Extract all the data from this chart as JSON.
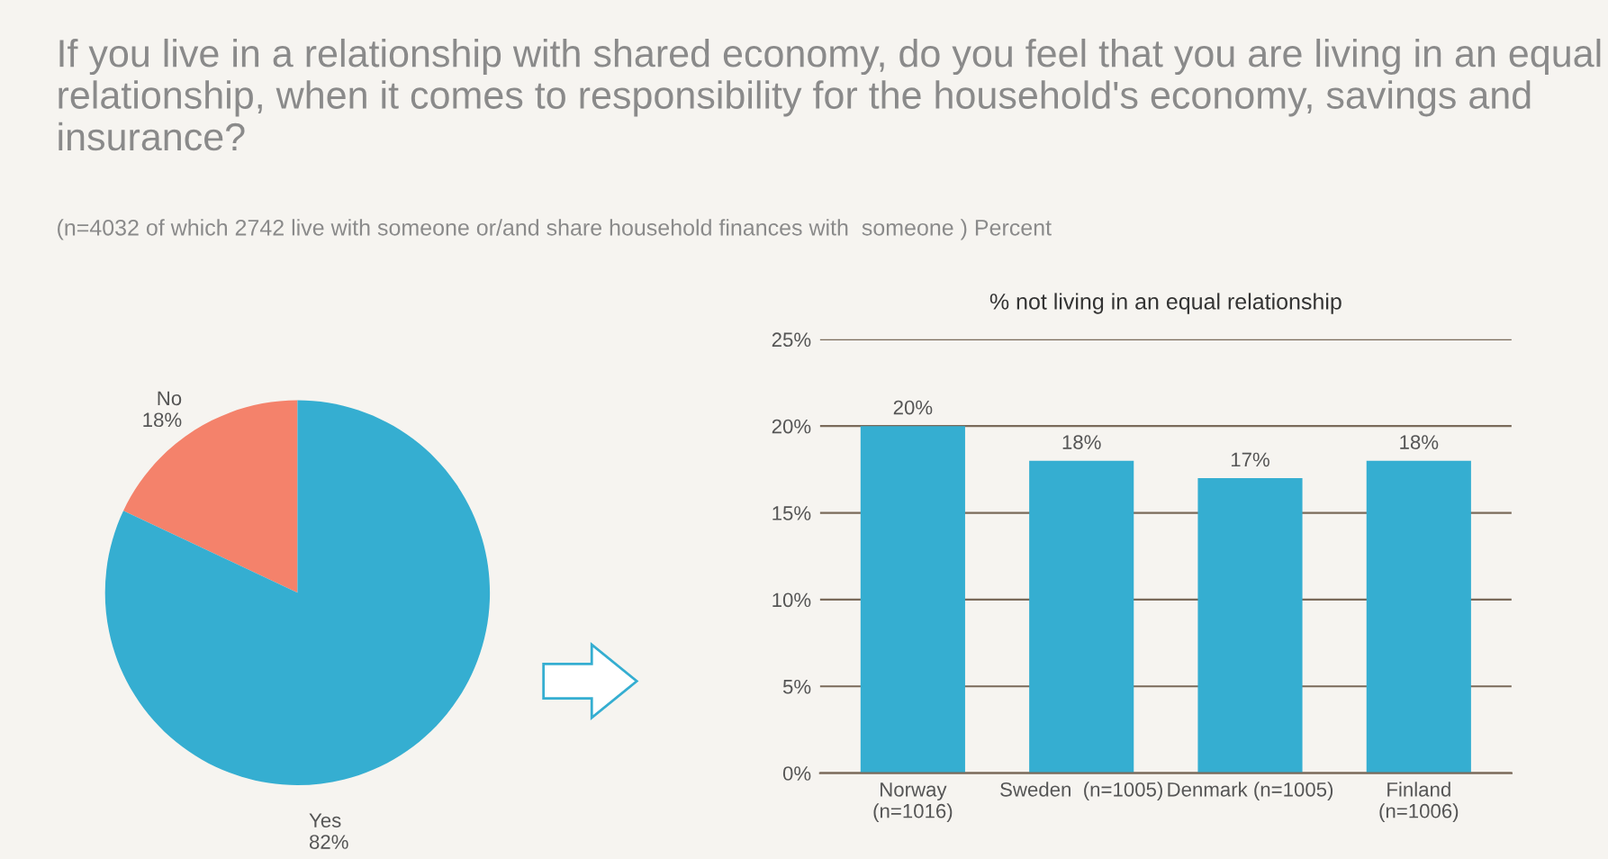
{
  "chart_data": [
    {
      "type": "pie",
      "title": "If you live in a relationship with shared economy, do you feel that you are living in an equal relationship, when it comes to responsibility for the household's economy, savings and insurance?",
      "subtitle": "(n=4032 of which 2742 live with someone or/and share household finances with  someone ) Percent",
      "categories": [
        "No",
        "Yes"
      ],
      "values": [
        18,
        82
      ],
      "value_labels": [
        "18%",
        "82%"
      ],
      "colors": [
        "#f4826b",
        "#35aed1"
      ]
    },
    {
      "type": "bar",
      "title": "% not living in an equal relationship",
      "categories": [
        "Norway\n(n=1016)",
        "Sweden  (n=1005)",
        "Denmark (n=1005)",
        "Finland\n(n=1006)"
      ],
      "values": [
        20,
        18,
        17,
        18
      ],
      "value_labels": [
        "20%",
        "18%",
        "17%",
        "18%"
      ],
      "color": "#35aed1",
      "ylim": [
        0,
        25
      ],
      "yticks": [
        {
          "value": 0,
          "label": "0%"
        },
        {
          "value": 5,
          "label": "5%"
        },
        {
          "value": 10,
          "label": "10%"
        },
        {
          "value": 15,
          "label": "15%"
        },
        {
          "value": 20,
          "label": "20%"
        },
        {
          "value": 25,
          "label": "25%"
        }
      ],
      "grid": "y"
    }
  ]
}
